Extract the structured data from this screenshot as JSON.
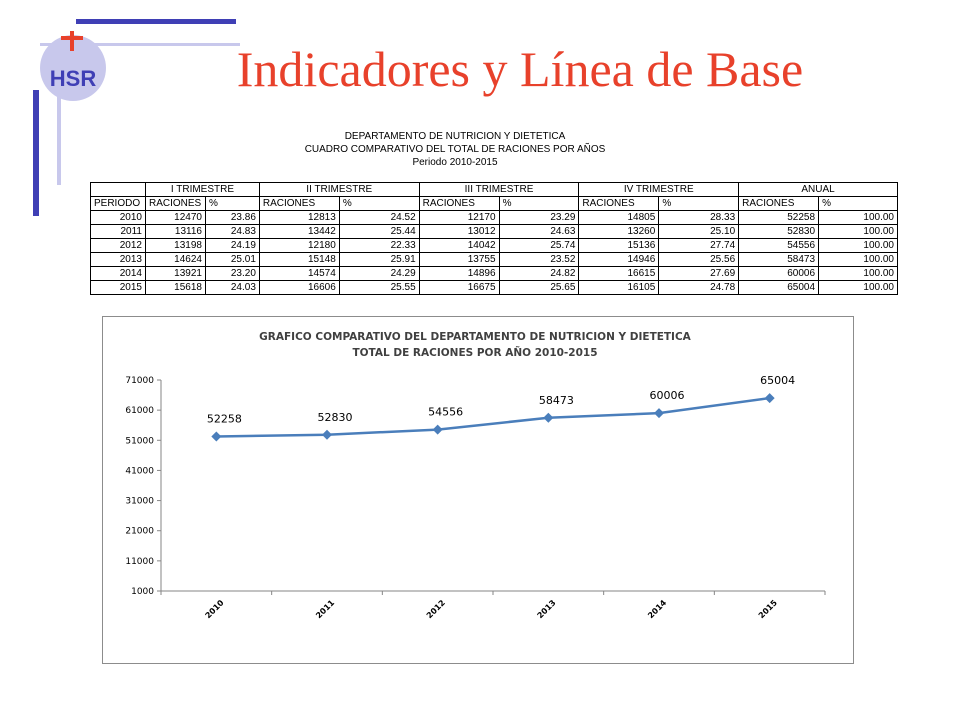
{
  "slide": {
    "title": "Indicadores y Línea de Base",
    "logo_text": "HSR"
  },
  "table": {
    "heading1": "DEPARTAMENTO DE NUTRICION Y DIETETICA",
    "heading2": "CUADRO COMPARATIVO DEL TOTAL DE RACIONES POR AÑOS",
    "heading3": "Periodo 2010-2015",
    "groups": [
      "I TRIMESTRE",
      "II TRIMESTRE",
      "III TRIMESTRE",
      "IV TRIMESTRE",
      "ANUAL"
    ],
    "period_label": "PERIODO",
    "sub_rac": "RACIONES",
    "sub_pct": "%",
    "rows": [
      [
        "2010",
        "12470",
        "23.86",
        "12813",
        "24.52",
        "12170",
        "23.29",
        "14805",
        "28.33",
        "52258",
        "100.00"
      ],
      [
        "2011",
        "13116",
        "24.83",
        "13442",
        "25.44",
        "13012",
        "24.63",
        "13260",
        "25.10",
        "52830",
        "100.00"
      ],
      [
        "2012",
        "13198",
        "24.19",
        "12180",
        "22.33",
        "14042",
        "25.74",
        "15136",
        "27.74",
        "54556",
        "100.00"
      ],
      [
        "2013",
        "14624",
        "25.01",
        "15148",
        "25.91",
        "13755",
        "23.52",
        "14946",
        "25.56",
        "58473",
        "100.00"
      ],
      [
        "2014",
        "13921",
        "23.20",
        "14574",
        "24.29",
        "14896",
        "24.82",
        "16615",
        "27.69",
        "60006",
        "100.00"
      ],
      [
        "2015",
        "15618",
        "24.03",
        "16606",
        "25.55",
        "16675",
        "25.65",
        "16105",
        "24.78",
        "65004",
        "100.00"
      ]
    ]
  },
  "chart_data": {
    "type": "line",
    "title": "GRAFICO COMPARATIVO DEL DEPARTAMENTO DE NUTRICION Y DIETETICA",
    "subtitle": "TOTAL DE RACIONES POR AÑO 2010-2015",
    "categories": [
      "2010",
      "2011",
      "2012",
      "2013",
      "2014",
      "2015"
    ],
    "values": [
      52258,
      52830,
      54556,
      58473,
      60006,
      65004
    ],
    "ylim": [
      1000,
      71000
    ],
    "yticks": [
      1000,
      11000,
      21000,
      31000,
      41000,
      51000,
      61000,
      71000
    ],
    "grid": false,
    "legend": "none",
    "line_color": "#4a7ebb",
    "xlabel": "",
    "ylabel": ""
  }
}
